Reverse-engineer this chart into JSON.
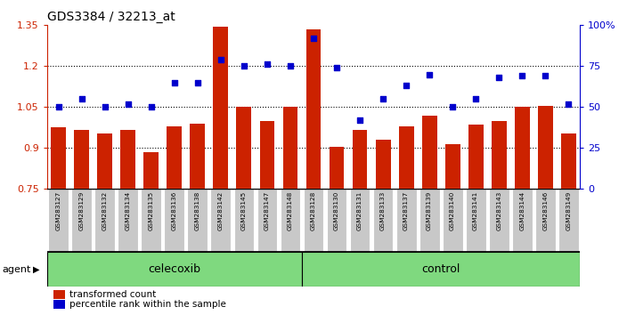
{
  "title": "GDS3384 / 32213_at",
  "samples": [
    "GSM283127",
    "GSM283129",
    "GSM283132",
    "GSM283134",
    "GSM283135",
    "GSM283136",
    "GSM283138",
    "GSM283142",
    "GSM283145",
    "GSM283147",
    "GSM283148",
    "GSM283128",
    "GSM283130",
    "GSM283131",
    "GSM283133",
    "GSM283137",
    "GSM283139",
    "GSM283140",
    "GSM283141",
    "GSM283143",
    "GSM283144",
    "GSM283146",
    "GSM283149"
  ],
  "bar_values": [
    0.975,
    0.965,
    0.955,
    0.965,
    0.885,
    0.98,
    0.99,
    1.345,
    1.05,
    1.0,
    1.05,
    1.335,
    0.905,
    0.965,
    0.93,
    0.98,
    1.02,
    0.915,
    0.985,
    1.0,
    1.05,
    1.055,
    0.955
  ],
  "scatter_values_pct": [
    50,
    55,
    50,
    52,
    50,
    65,
    65,
    79,
    75,
    76,
    75,
    92,
    74,
    42,
    55,
    63,
    70,
    50,
    55,
    68,
    69,
    69,
    52
  ],
  "group1_label": "celecoxib",
  "group2_label": "control",
  "group1_count": 11,
  "group2_count": 12,
  "bar_color": "#CC2200",
  "scatter_color": "#0000CC",
  "ylim_left": [
    0.75,
    1.35
  ],
  "ylim_right": [
    0,
    100
  ],
  "yticks_left": [
    0.75,
    0.9,
    1.05,
    1.2,
    1.35
  ],
  "yticks_left_labels": [
    "0.75",
    "0.9",
    "1.05",
    "1.2",
    "1.35"
  ],
  "yticks_right": [
    0,
    25,
    50,
    75,
    100
  ],
  "yticks_right_labels": [
    "0",
    "25",
    "50",
    "75",
    "100%"
  ],
  "hlines": [
    0.9,
    1.05,
    1.2
  ],
  "agent_label": "agent",
  "legend1": "transformed count",
  "legend2": "percentile rank within the sample",
  "bg_color": "#ffffff",
  "plot_bg_color": "#ffffff",
  "group_bg": "#7FD97F",
  "xticklabel_bg": "#C8C8C8",
  "xticklabel_sep_color": "#ffffff"
}
